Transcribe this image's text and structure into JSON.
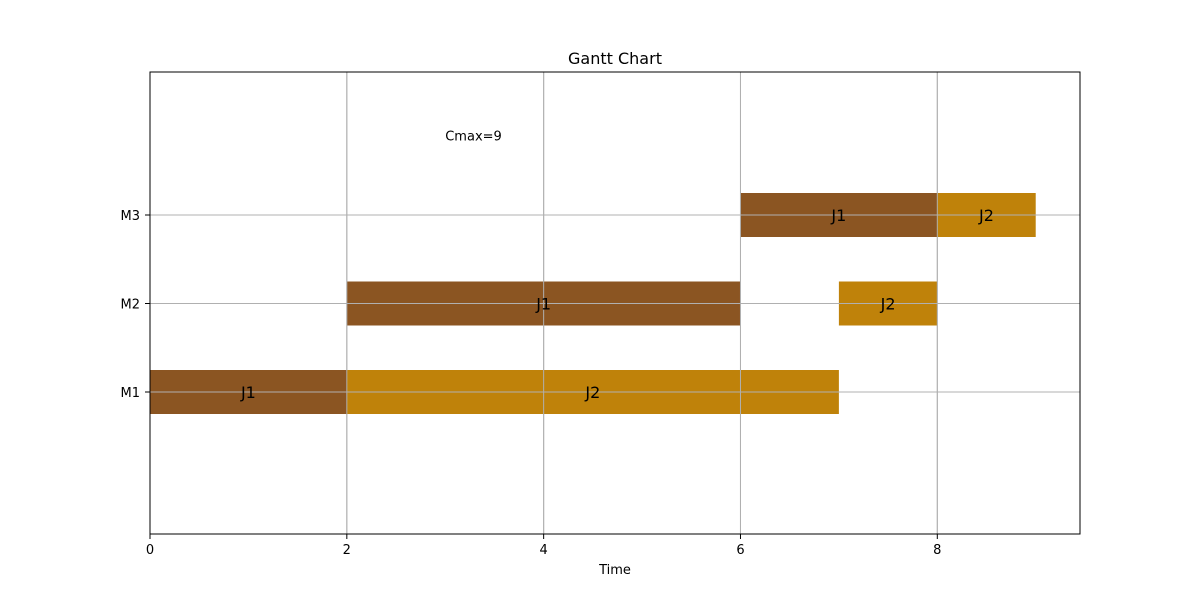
{
  "chart_data": {
    "type": "gantt",
    "title": "Gantt Chart",
    "xlabel": "Time",
    "ylabel": "",
    "xlim": [
      0,
      9.45
    ],
    "x_ticks": [
      0,
      2,
      4,
      6,
      8
    ],
    "machines": [
      "M1",
      "M2",
      "M3"
    ],
    "grid": true,
    "annotation": {
      "text": "Cmax=9",
      "x": 3,
      "y_machine_offset": 0.9
    },
    "jobs": [
      {
        "name": "J1",
        "color": "#8b5522"
      },
      {
        "name": "J2",
        "color": "#bf820a"
      }
    ],
    "tasks": [
      {
        "job": "J1",
        "machine": "M1",
        "start": 0,
        "end": 2
      },
      {
        "job": "J2",
        "machine": "M1",
        "start": 2,
        "end": 7
      },
      {
        "job": "J1",
        "machine": "M2",
        "start": 2,
        "end": 6
      },
      {
        "job": "J2",
        "machine": "M2",
        "start": 7,
        "end": 8
      },
      {
        "job": "J1",
        "machine": "M3",
        "start": 6,
        "end": 8
      },
      {
        "job": "J2",
        "machine": "M3",
        "start": 8,
        "end": 9
      }
    ]
  }
}
